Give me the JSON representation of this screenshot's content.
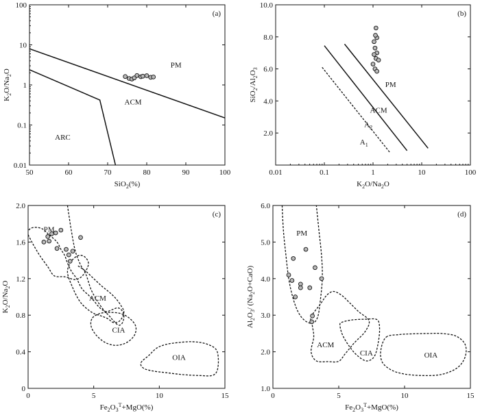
{
  "chart_data": [
    {
      "type": "scatter",
      "panel_tag": "(a)",
      "xlabel": "SiO2(%)",
      "ylabel": "K2O/Na2O",
      "xlim": [
        50,
        100
      ],
      "ylim": [
        0.01,
        100
      ],
      "yscale": "log",
      "x_ticks": [
        50,
        60,
        70,
        80,
        90,
        100
      ],
      "y_ticks": [
        0.01,
        0.1,
        1,
        10,
        100
      ],
      "x_tick_labels": [
        "50",
        "60",
        "70",
        "80",
        "90",
        "100"
      ],
      "y_tick_labels": [
        "0.01",
        "0.1",
        "1",
        "10",
        "100"
      ],
      "fields": [
        {
          "label": "PM",
          "at": [
            87.5,
            3.2
          ]
        },
        {
          "label": "ACM",
          "at": [
            76.5,
            0.38
          ]
        },
        {
          "label": "ARC",
          "at": [
            58.5,
            0.05
          ]
        }
      ],
      "boundaries": [
        {
          "style": "solid",
          "points": [
            [
              50,
              8.0
            ],
            [
              100,
              0.15
            ]
          ]
        },
        {
          "style": "solid",
          "points": [
            [
              50,
              2.4
            ],
            [
              68,
              0.42
            ],
            [
              72,
              0.01
            ]
          ]
        }
      ],
      "points": [
        {
          "x": 74.5,
          "y": 1.62
        },
        {
          "x": 75.5,
          "y": 1.45
        },
        {
          "x": 76.2,
          "y": 1.4
        },
        {
          "x": 76.8,
          "y": 1.5
        },
        {
          "x": 77.5,
          "y": 1.72
        },
        {
          "x": 78.5,
          "y": 1.6
        },
        {
          "x": 79.0,
          "y": 1.65
        },
        {
          "x": 80.0,
          "y": 1.7
        },
        {
          "x": 81.0,
          "y": 1.55
        },
        {
          "x": 81.7,
          "y": 1.58
        }
      ]
    },
    {
      "type": "scatter",
      "panel_tag": "(b)",
      "xlabel": "K2O/Na2O",
      "ylabel": "SiO2/Al2O3",
      "xlim": [
        0.01,
        100
      ],
      "xscale": "log",
      "ylim": [
        0,
        10
      ],
      "x_ticks": [
        0.01,
        0.1,
        1,
        10,
        100
      ],
      "y_ticks": [
        0,
        2,
        4,
        6,
        8,
        10
      ],
      "x_tick_labels": [
        "0.01",
        "0.1",
        "1",
        "10",
        "100"
      ],
      "y_tick_labels": [
        "",
        "2.0",
        "4.0",
        "6.0",
        "8.0",
        "10.0"
      ],
      "fields": [
        {
          "label": "PM",
          "at": [
            2.3,
            5.05
          ]
        },
        {
          "label": "ACM",
          "at": [
            1.3,
            3.45
          ]
        },
        {
          "label": "A2",
          "at": [
            0.8,
            2.55
          ]
        },
        {
          "label": "A1",
          "at": [
            0.65,
            1.45
          ]
        }
      ],
      "boundaries": [
        {
          "style": "solid",
          "points": [
            [
              0.26,
              7.55
            ],
            [
              13.5,
              1.05
            ]
          ]
        },
        {
          "style": "solid",
          "points": [
            [
              0.1,
              7.45
            ],
            [
              5.0,
              0.9
            ]
          ]
        },
        {
          "style": "dash",
          "points": [
            [
              0.09,
              6.1
            ],
            [
              2.2,
              0.8
            ]
          ]
        }
      ],
      "points": [
        {
          "x": 1.05,
          "y": 7.7
        },
        {
          "x": 1.15,
          "y": 8.55
        },
        {
          "x": 1.2,
          "y": 7.95
        },
        {
          "x": 1.1,
          "y": 7.3
        },
        {
          "x": 1.2,
          "y": 7.0
        },
        {
          "x": 1.05,
          "y": 6.9
        },
        {
          "x": 1.15,
          "y": 6.65
        },
        {
          "x": 1.3,
          "y": 6.55
        },
        {
          "x": 1.0,
          "y": 6.3
        },
        {
          "x": 1.1,
          "y": 6.0
        },
        {
          "x": 1.2,
          "y": 5.85
        },
        {
          "x": 1.12,
          "y": 8.1
        }
      ]
    },
    {
      "type": "scatter",
      "panel_tag": "(c)",
      "xlabel": "Fe2O3T+MgO(%)",
      "ylabel": "K2O/Na2O",
      "xlim": [
        0,
        15
      ],
      "ylim": [
        0,
        2.0
      ],
      "x_ticks": [
        0,
        5,
        10,
        15
      ],
      "y_ticks": [
        0,
        0.4,
        0.8,
        1.2,
        1.6,
        2.0
      ],
      "x_tick_labels": [
        "0",
        "5",
        "10",
        "15"
      ],
      "y_tick_labels": [
        "0",
        "0.4",
        "0.8",
        "1.2",
        "1.6",
        "2.0"
      ],
      "fields": [
        {
          "label": "PM",
          "at": [
            1.6,
            1.74
          ]
        },
        {
          "label": "ACM",
          "at": [
            5.3,
            0.99
          ]
        },
        {
          "label": "CIA",
          "at": [
            6.9,
            0.64
          ]
        },
        {
          "label": "OIA",
          "at": [
            11.5,
            0.34
          ]
        }
      ],
      "boundaries": [
        {
          "style": "dash",
          "closed": false,
          "points": [
            [
              3.0,
              2.0
            ],
            [
              3.3,
              1.72
            ],
            [
              3.6,
              1.5
            ],
            [
              4.0,
              1.35
            ],
            [
              4.4,
              1.25
            ],
            [
              4.8,
              1.08
            ],
            [
              5.3,
              0.95
            ],
            [
              5.8,
              0.85
            ],
            [
              6.2,
              0.79
            ],
            [
              6.5,
              0.74
            ],
            [
              6.9,
              0.69
            ],
            [
              7.2,
              0.72
            ],
            [
              7.3,
              0.8
            ],
            [
              7.1,
              0.86
            ],
            [
              6.8,
              0.88
            ],
            [
              6.4,
              0.86
            ],
            [
              5.9,
              0.84
            ],
            [
              5.4,
              0.89
            ],
            [
              5.0,
              0.96
            ],
            [
              4.6,
              1.02
            ],
            [
              4.1,
              1.09
            ],
            [
              3.7,
              1.2
            ],
            [
              3.3,
              1.28
            ],
            [
              3.0,
              1.37
            ],
            [
              2.8,
              1.45
            ],
            [
              2.5,
              1.52
            ],
            [
              2.2,
              1.6
            ],
            [
              1.6,
              1.68
            ],
            [
              1.0,
              1.75
            ],
            [
              0.2,
              1.75
            ],
            [
              -0.3,
              1.65
            ]
          ]
        },
        {
          "style": "dash",
          "closed": false,
          "points": [
            [
              0,
              1.68
            ],
            [
              0.4,
              1.57
            ],
            [
              0.9,
              1.45
            ],
            [
              1.5,
              1.33
            ],
            [
              2.0,
              1.23
            ],
            [
              2.8,
              1.22
            ],
            [
              3.6,
              1.19
            ],
            [
              4.2,
              1.24
            ],
            [
              4.6,
              1.36
            ],
            [
              4.3,
              1.44
            ],
            [
              3.8,
              1.45
            ],
            [
              3.3,
              1.39
            ],
            [
              3.0,
              1.27
            ],
            [
              3.4,
              1.1
            ],
            [
              3.9,
              0.96
            ],
            [
              4.4,
              0.88
            ],
            [
              5.0,
              0.82
            ],
            [
              5.6,
              0.79
            ],
            [
              6.1,
              0.76
            ],
            [
              6.5,
              0.72
            ],
            [
              7.0,
              0.74
            ],
            [
              7.3,
              0.83
            ],
            [
              7.1,
              0.9
            ],
            [
              6.7,
              0.98
            ],
            [
              6.2,
              1.05
            ],
            [
              5.6,
              1.12
            ],
            [
              5.0,
              1.2
            ],
            [
              4.4,
              1.28
            ],
            [
              3.8,
              1.34
            ]
          ]
        },
        {
          "style": "dash",
          "closed": true,
          "points": [
            [
              4.9,
              0.77
            ],
            [
              5.5,
              0.82
            ],
            [
              6.2,
              0.83
            ],
            [
              7.0,
              0.82
            ],
            [
              7.7,
              0.77
            ],
            [
              8.2,
              0.68
            ],
            [
              8.1,
              0.58
            ],
            [
              7.5,
              0.5
            ],
            [
              6.7,
              0.47
            ],
            [
              5.9,
              0.5
            ],
            [
              5.2,
              0.58
            ],
            [
              4.8,
              0.68
            ]
          ]
        },
        {
          "style": "dash",
          "closed": true,
          "points": [
            [
              8.6,
              0.28
            ],
            [
              9.2,
              0.36
            ],
            [
              9.8,
              0.44
            ],
            [
              10.5,
              0.48
            ],
            [
              11.4,
              0.5
            ],
            [
              12.5,
              0.51
            ],
            [
              13.5,
              0.49
            ],
            [
              14.3,
              0.43
            ],
            [
              14.5,
              0.32
            ],
            [
              14.4,
              0.19
            ],
            [
              14.0,
              0.14
            ],
            [
              13.1,
              0.14
            ],
            [
              11.8,
              0.15
            ],
            [
              10.6,
              0.17
            ],
            [
              9.5,
              0.19
            ],
            [
              8.8,
              0.22
            ]
          ]
        }
      ],
      "points": [
        {
          "x": 1.2,
          "y": 1.6
        },
        {
          "x": 1.5,
          "y": 1.66
        },
        {
          "x": 1.8,
          "y": 1.69
        },
        {
          "x": 2.1,
          "y": 1.7
        },
        {
          "x": 2.5,
          "y": 1.73
        },
        {
          "x": 1.6,
          "y": 1.61
        },
        {
          "x": 2.2,
          "y": 1.53
        },
        {
          "x": 2.9,
          "y": 1.52
        },
        {
          "x": 3.1,
          "y": 1.46
        },
        {
          "x": 3.4,
          "y": 1.5
        },
        {
          "x": 3.2,
          "y": 1.39
        },
        {
          "x": 4.0,
          "y": 1.65
        }
      ]
    },
    {
      "type": "scatter",
      "panel_tag": "(d)",
      "xlabel": "Fe2O3T+MgO(%)",
      "ylabel": "Al2O3/ (Na2O+CaO)",
      "xlim": [
        0,
        15
      ],
      "ylim": [
        1,
        6
      ],
      "x_ticks": [
        0,
        5,
        10,
        15
      ],
      "y_ticks": [
        1,
        2,
        3,
        4,
        5,
        6
      ],
      "x_tick_labels": [
        "0",
        "5",
        "10",
        "15"
      ],
      "y_tick_labels": [
        "1.0",
        "2.0",
        "3.0",
        "4.0",
        "5.0",
        "6.0"
      ],
      "fields": [
        {
          "label": "PM",
          "at": [
            2.2,
            5.25
          ]
        },
        {
          "label": "ACM",
          "at": [
            4.0,
            2.2
          ]
        },
        {
          "label": "CIA",
          "at": [
            7.1,
            1.97
          ]
        },
        {
          "label": "OIA",
          "at": [
            12.0,
            1.92
          ]
        }
      ],
      "boundaries": [
        {
          "style": "dash",
          "closed": false,
          "points": [
            [
              0.7,
              6.0
            ],
            [
              0.8,
              5.3
            ],
            [
              1.0,
              4.6
            ],
            [
              1.2,
              4.0
            ],
            [
              1.5,
              3.5
            ],
            [
              1.9,
              3.1
            ],
            [
              2.4,
              2.86
            ],
            [
              3.0,
              2.78
            ],
            [
              3.4,
              2.95
            ],
            [
              3.6,
              3.4
            ],
            [
              3.75,
              4.0
            ],
            [
              3.7,
              4.6
            ],
            [
              3.5,
              5.3
            ],
            [
              3.3,
              6.0
            ]
          ]
        },
        {
          "style": "dash",
          "closed": true,
          "points": [
            [
              2.9,
              2.95
            ],
            [
              3.6,
              3.3
            ],
            [
              4.1,
              3.55
            ],
            [
              4.6,
              3.65
            ],
            [
              5.2,
              3.55
            ],
            [
              5.8,
              3.35
            ],
            [
              6.5,
              3.1
            ],
            [
              7.3,
              2.85
            ],
            [
              7.0,
              2.55
            ],
            [
              6.2,
              2.25
            ],
            [
              5.5,
              1.95
            ],
            [
              5.0,
              1.74
            ],
            [
              4.2,
              1.73
            ],
            [
              3.3,
              1.75
            ],
            [
              2.9,
              2.0
            ],
            [
              3.1,
              2.4
            ],
            [
              3.0,
              2.7
            ]
          ]
        },
        {
          "style": "dash",
          "closed": true,
          "points": [
            [
              5.2,
              2.8
            ],
            [
              6.0,
              2.87
            ],
            [
              7.0,
              2.89
            ],
            [
              7.9,
              2.88
            ],
            [
              8.1,
              2.65
            ],
            [
              8.0,
              2.25
            ],
            [
              7.7,
              1.87
            ],
            [
              7.1,
              1.75
            ],
            [
              6.4,
              1.9
            ],
            [
              5.8,
              2.15
            ],
            [
              5.3,
              2.45
            ],
            [
              5.1,
              2.7
            ]
          ]
        },
        {
          "style": "dash",
          "closed": true,
          "points": [
            [
              8.6,
              2.4
            ],
            [
              9.6,
              2.47
            ],
            [
              10.6,
              2.49
            ],
            [
              11.8,
              2.5
            ],
            [
              12.8,
              2.5
            ],
            [
              13.9,
              2.43
            ],
            [
              14.6,
              2.2
            ],
            [
              14.6,
              1.86
            ],
            [
              14.0,
              1.56
            ],
            [
              12.8,
              1.38
            ],
            [
              11.4,
              1.35
            ],
            [
              10.0,
              1.39
            ],
            [
              9.0,
              1.5
            ],
            [
              8.3,
              1.72
            ],
            [
              8.2,
              2.05
            ]
          ]
        }
      ],
      "points": [
        {
          "x": 1.2,
          "y": 4.1
        },
        {
          "x": 1.55,
          "y": 4.55
        },
        {
          "x": 1.45,
          "y": 3.95
        },
        {
          "x": 1.7,
          "y": 3.5
        },
        {
          "x": 2.1,
          "y": 3.85
        },
        {
          "x": 2.5,
          "y": 4.8
        },
        {
          "x": 2.1,
          "y": 3.75
        },
        {
          "x": 2.8,
          "y": 3.75
        },
        {
          "x": 3.2,
          "y": 4.3
        },
        {
          "x": 3.0,
          "y": 2.98
        },
        {
          "x": 2.95,
          "y": 2.82
        },
        {
          "x": 3.7,
          "y": 4.0
        }
      ]
    }
  ]
}
